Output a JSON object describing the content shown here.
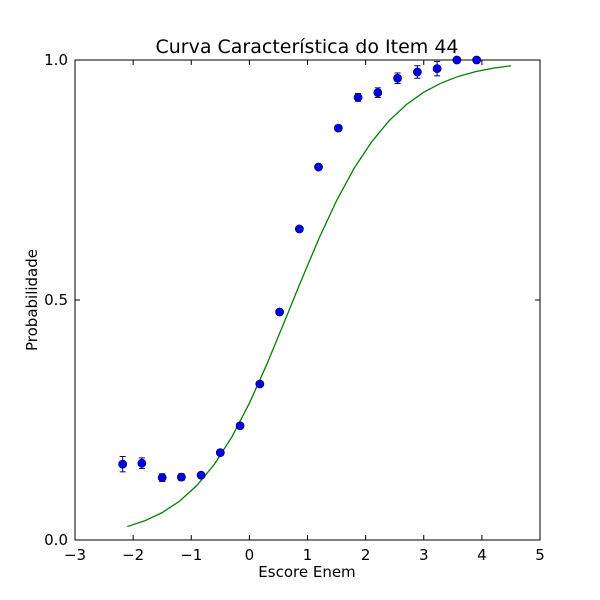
{
  "chart_data": {
    "type": "scatter",
    "title": "Curva Característica do Item 44",
    "xlabel": "Escore Enem",
    "ylabel": "Probabilidade",
    "xlim": [
      -3,
      5
    ],
    "ylim": [
      0.0,
      1.0
    ],
    "xticks": [
      -3,
      -2,
      -1,
      0,
      1,
      2,
      3,
      4,
      5
    ],
    "xtick_labels": [
      "−3",
      "−2",
      "−1",
      "0",
      "1",
      "2",
      "3",
      "4",
      "5"
    ],
    "yticks": [
      0.0,
      0.5,
      1.0
    ],
    "ytick_labels": [
      "0.0",
      "0.5",
      "1.0"
    ],
    "grid": false,
    "series": [
      {
        "kind": "points_with_errorbars",
        "color": "#0000ee",
        "x": [
          -2.18,
          -1.85,
          -1.5,
          -1.17,
          -0.83,
          -0.5,
          -0.16,
          0.18,
          0.52,
          0.86,
          1.19,
          1.53,
          1.87,
          2.21,
          2.55,
          2.89,
          3.23,
          3.57,
          3.91
        ],
        "y": [
          0.158,
          0.16,
          0.13,
          0.131,
          0.135,
          0.182,
          0.238,
          0.325,
          0.475,
          0.648,
          0.777,
          0.858,
          0.922,
          0.932,
          0.962,
          0.975,
          0.982,
          1.0,
          1.0
        ],
        "yerr": [
          0.016,
          0.011,
          0.008,
          0.007,
          0.006,
          0.006,
          0.005,
          0.005,
          0.005,
          0.005,
          0.006,
          0.006,
          0.008,
          0.01,
          0.011,
          0.013,
          0.015,
          0.004,
          0.004
        ]
      },
      {
        "kind": "curve",
        "color": "#008000",
        "x": [
          -2.1,
          -1.8,
          -1.5,
          -1.2,
          -0.9,
          -0.6,
          -0.3,
          0.0,
          0.3,
          0.6,
          0.9,
          1.2,
          1.5,
          1.8,
          2.1,
          2.4,
          2.7,
          3.0,
          3.3,
          3.6,
          3.9,
          4.2,
          4.5
        ],
        "y": [
          0.028,
          0.04,
          0.057,
          0.081,
          0.114,
          0.158,
          0.215,
          0.285,
          0.366,
          0.454,
          0.543,
          0.629,
          0.707,
          0.774,
          0.829,
          0.873,
          0.907,
          0.933,
          0.952,
          0.966,
          0.976,
          0.983,
          0.988
        ]
      }
    ]
  }
}
